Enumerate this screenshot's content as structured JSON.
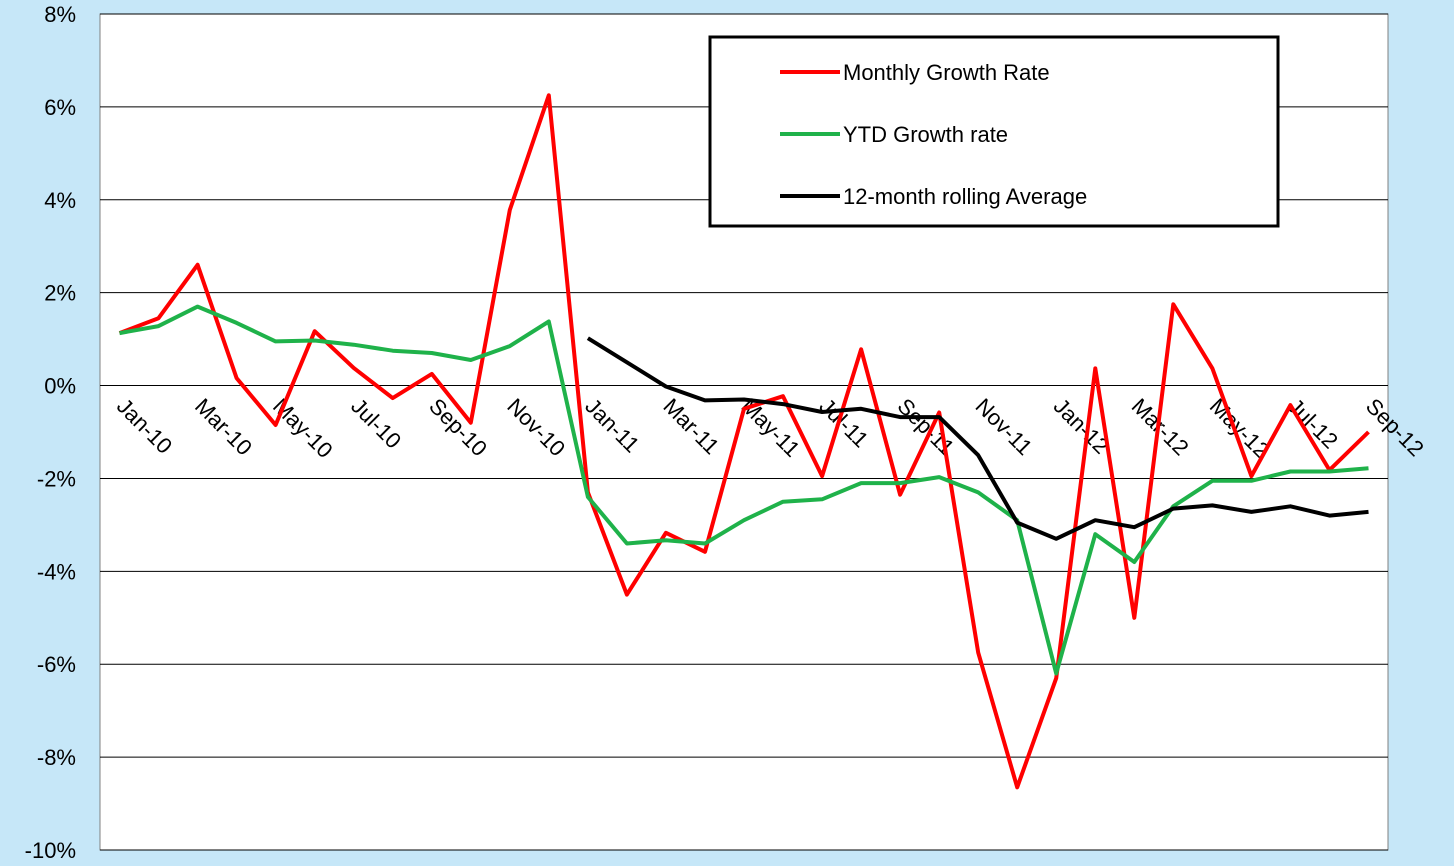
{
  "chart_data": {
    "type": "line",
    "categories": [
      "Jan-10",
      null,
      "Mar-10",
      null,
      "May-10",
      null,
      "Jul-10",
      null,
      "Sep-10",
      null,
      "Nov-10",
      null,
      "Jan-11",
      null,
      "Mar-11",
      null,
      "May-11",
      null,
      "Jul-11",
      null,
      "Sep-11",
      null,
      "Nov-11",
      null,
      "Jan-12",
      null,
      "Mar-12",
      null,
      "May-12",
      null,
      "Jul-12",
      null,
      "Sep-12"
    ],
    "series": [
      {
        "name": "Monthly Growth Rate",
        "color": "#ff0000",
        "values": [
          1.13,
          1.45,
          2.6,
          0.16,
          -0.85,
          1.17,
          0.38,
          -0.27,
          0.25,
          -0.8,
          3.78,
          6.25,
          -2.3,
          -4.5,
          -3.17,
          -3.58,
          -0.5,
          -0.23,
          -1.95,
          0.78,
          -2.35,
          -0.58,
          -5.75,
          -8.65,
          -6.3,
          0.37,
          -5.0,
          1.75,
          0.37,
          -1.95,
          -0.42,
          -1.82,
          -1.0
        ]
      },
      {
        "name": "YTD Growth rate",
        "color": "#1fb24a",
        "values": [
          1.13,
          1.28,
          1.7,
          1.35,
          0.95,
          0.97,
          0.88,
          0.75,
          0.7,
          0.55,
          0.85,
          1.38,
          -2.4,
          -3.4,
          -3.33,
          -3.4,
          -2.9,
          -2.5,
          -2.45,
          -2.1,
          -2.1,
          -1.97,
          -2.3,
          -2.9,
          -6.2,
          -3.2,
          -3.8,
          -2.6,
          -2.05,
          -2.05,
          -1.85,
          -1.85,
          -1.78
        ]
      },
      {
        "name": "12-month rolling Average",
        "color": "#000000",
        "values": [
          null,
          null,
          null,
          null,
          null,
          null,
          null,
          null,
          null,
          null,
          null,
          null,
          1.02,
          0.5,
          -0.02,
          -0.32,
          -0.3,
          -0.4,
          -0.57,
          -0.5,
          -0.68,
          -0.68,
          -1.5,
          -2.95,
          -3.3,
          -2.9,
          -3.05,
          -2.65,
          -2.58,
          -2.72,
          -2.6,
          -2.8,
          -2.72
        ]
      }
    ],
    "ylim": [
      -10,
      8
    ],
    "yticks": [
      {
        "value": -10,
        "label": "-10%"
      },
      {
        "value": -8,
        "label": "-8%"
      },
      {
        "value": -6,
        "label": "-6%"
      },
      {
        "value": -4,
        "label": "-4%"
      },
      {
        "value": -2,
        "label": "-2%"
      },
      {
        "value": 0,
        "label": "0%"
      },
      {
        "value": 2,
        "label": "2%"
      },
      {
        "value": 4,
        "label": "4%"
      },
      {
        "value": 6,
        "label": "6%"
      },
      {
        "value": 8,
        "label": "8%"
      }
    ],
    "grid": true,
    "legend": "upper right"
  }
}
